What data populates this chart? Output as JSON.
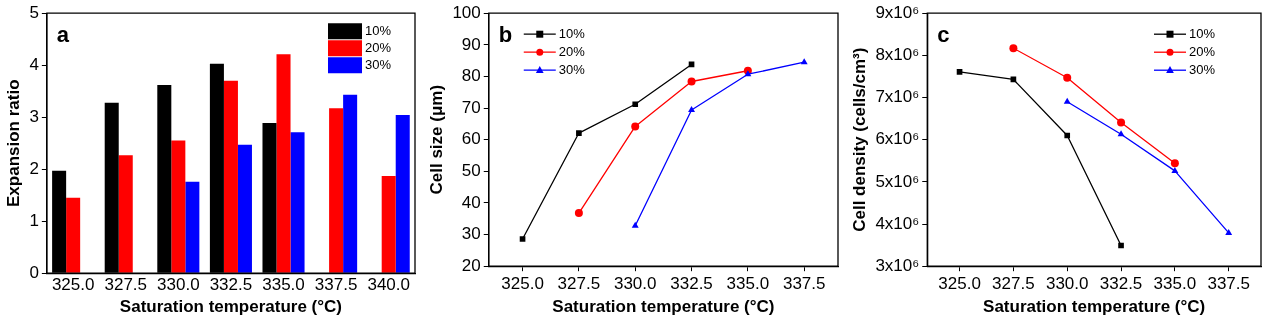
{
  "chart_data": [
    {
      "type": "bar",
      "annotations": [
        "a"
      ],
      "xlabel": "Saturation temperature (°C)",
      "ylabel": "Expansion ratio",
      "categories": [
        "325.0",
        "327.5",
        "330.0",
        "332.5",
        "335.0",
        "337.5",
        "340.0"
      ],
      "series": [
        {
          "name": "10%",
          "color": "#000000",
          "values": [
            1.97,
            3.28,
            3.62,
            4.03,
            2.89,
            null,
            null
          ]
        },
        {
          "name": "20%",
          "color": "#ff0000",
          "values": [
            1.45,
            2.27,
            2.55,
            3.7,
            4.21,
            3.17,
            1.87
          ]
        },
        {
          "name": "30%",
          "color": "#0000ff",
          "values": [
            null,
            null,
            1.76,
            2.47,
            2.71,
            3.43,
            3.04
          ]
        }
      ],
      "ylim": [
        0,
        5
      ],
      "yticks": [
        0,
        1,
        2,
        3,
        4,
        5
      ],
      "grid": false,
      "legend": "top right"
    },
    {
      "type": "line",
      "annotations": [
        "b"
      ],
      "xlabel": "Saturation temperature (°C)",
      "ylabel": "Cell size (μm)",
      "series": [
        {
          "name": "10%",
          "color": "#000000",
          "marker": "square",
          "x": [
            325,
            327.5,
            330,
            332.5
          ],
          "values": [
            28.6,
            62.1,
            71.2,
            83.8
          ]
        },
        {
          "name": "20%",
          "color": "#ff0000",
          "marker": "circle",
          "x": [
            327.5,
            330,
            332.5,
            335
          ],
          "values": [
            36.8,
            64.2,
            78.4,
            81.8
          ]
        },
        {
          "name": "30%",
          "color": "#0000ff",
          "marker": "triangle",
          "x": [
            330,
            332.5,
            335,
            337.5
          ],
          "values": [
            32.8,
            69.4,
            80.7,
            84.5
          ]
        }
      ],
      "xlim": [
        323.5,
        339
      ],
      "xticks": [
        {
          "value": 325,
          "label": "325.0"
        },
        {
          "value": 327.5,
          "label": "327.5"
        },
        {
          "value": 330,
          "label": "330.0"
        },
        {
          "value": 332.5,
          "label": "332.5"
        },
        {
          "value": 335,
          "label": "335.0"
        },
        {
          "value": 337.5,
          "label": "337.5"
        }
      ],
      "ylim": [
        20,
        100
      ],
      "yticks": [
        20,
        30,
        40,
        50,
        60,
        70,
        80,
        90,
        100
      ],
      "grid": false,
      "legend": "top left"
    },
    {
      "type": "line",
      "annotations": [
        "c"
      ],
      "xlabel": "Saturation temperature (°C)",
      "ylabel": "Cell density (cells/cm³)",
      "series": [
        {
          "name": "10%",
          "color": "#000000",
          "marker": "square",
          "x": [
            325,
            327.5,
            330,
            332.5
          ],
          "values": [
            7610000,
            7430000,
            6100000,
            3490000
          ]
        },
        {
          "name": "20%",
          "color": "#ff0000",
          "marker": "circle",
          "x": [
            327.5,
            330,
            332.5,
            335
          ],
          "values": [
            8170000,
            7470000,
            6410000,
            5440000
          ]
        },
        {
          "name": "30%",
          "color": "#0000ff",
          "marker": "triangle",
          "x": [
            330,
            332.5,
            335,
            337.5
          ],
          "values": [
            6900000,
            6130000,
            5260000,
            3790000
          ]
        }
      ],
      "xlim": [
        323.5,
        339
      ],
      "xticks": [
        {
          "value": 325,
          "label": "325.0"
        },
        {
          "value": 327.5,
          "label": "327.5"
        },
        {
          "value": 330,
          "label": "330.0"
        },
        {
          "value": 332.5,
          "label": "332.5"
        },
        {
          "value": 335,
          "label": "335.0"
        },
        {
          "value": 337.5,
          "label": "337.5"
        }
      ],
      "ylim": [
        3000000,
        9000000
      ],
      "yticks": [
        {
          "value": 3000000,
          "label": "3x10⁶"
        },
        {
          "value": 4000000,
          "label": "4x10⁶"
        },
        {
          "value": 5000000,
          "label": "5x10⁶"
        },
        {
          "value": 6000000,
          "label": "6x10⁶"
        },
        {
          "value": 7000000,
          "label": "7x10⁶"
        },
        {
          "value": 8000000,
          "label": "8x10⁶"
        },
        {
          "value": 9000000,
          "label": "9x10⁶"
        }
      ],
      "grid": false,
      "legend": "top right"
    }
  ]
}
